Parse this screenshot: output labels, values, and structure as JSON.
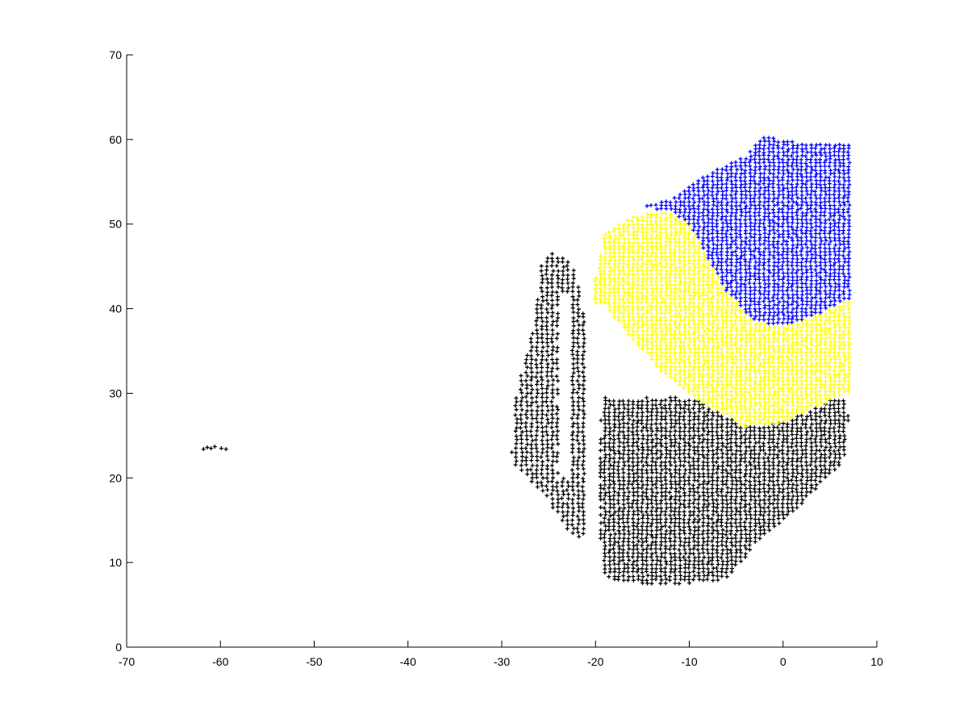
{
  "chart_data": {
    "type": "scatter",
    "title": "",
    "xlabel": "",
    "ylabel": "",
    "xlim": [
      -70,
      10
    ],
    "ylim": [
      0,
      70
    ],
    "xticks": [
      -70,
      -60,
      -50,
      -40,
      -30,
      -20,
      -10,
      0,
      10
    ],
    "yticks": [
      0,
      10,
      20,
      30,
      40,
      50,
      60,
      70
    ],
    "grid": false,
    "legend": "none",
    "marker": "+",
    "series": [
      {
        "color": "#000000",
        "regions": [
          {
            "x_range": [
              -62,
              -59
            ],
            "y_range": [
              23.2,
              23.9
            ],
            "step": [
              0.5,
              0.35
            ],
            "points": [
              [
                -61.8,
                23.4
              ],
              [
                -61.4,
                23.6
              ],
              [
                -61.0,
                23.5
              ],
              [
                -60.6,
                23.7
              ],
              [
                -59.9,
                23.5
              ],
              [
                -59.4,
                23.4
              ]
            ]
          },
          {
            "x_range": [
              -29,
              -21
            ],
            "y_range": [
              13,
              46.5
            ],
            "step": [
              0.55,
              0.5
            ],
            "bounds": [
              {
                "y": 13,
                "left": -22.5,
                "right": -21.2
              },
              {
                "y": 18,
                "left": -25.5,
                "right": -21.0
              },
              {
                "y": 22,
                "left": -29.0,
                "right": -21.0
              },
              {
                "y": 30,
                "left": -28.5,
                "right": -21.0
              },
              {
                "y": 38,
                "left": -26.5,
                "right": -21.0
              },
              {
                "y": 44,
                "left": -26.0,
                "right": -22.0
              },
              {
                "y": 46.5,
                "left": -25.5,
                "right": -23.5
              }
            ]
          },
          {
            "x_range": [
              -19.5,
              7
            ],
            "y_range": [
              7.5,
              40.5
            ],
            "step": [
              0.5,
              0.45
            ],
            "bounds": [
              {
                "y": 7.5,
                "left": -15,
                "right": -10
              },
              {
                "y": 8,
                "left": -19,
                "right": -6
              },
              {
                "y": 12,
                "left": -19.5,
                "right": -3
              },
              {
                "y": 17,
                "left": -19.5,
                "right": 2
              },
              {
                "y": 22,
                "left": -19.5,
                "right": 6.5
              },
              {
                "y": 26,
                "left": -19.5,
                "right": 7
              },
              {
                "y": 29.5,
                "left": -19.5,
                "right": 6.8
              }
            ],
            "upper_boundary": [
              [
                -19,
                40.5
              ],
              [
                -16,
                36
              ],
              [
                -12,
                31.5
              ],
              [
                -8,
                28.5
              ],
              [
                -4,
                26
              ],
              [
                0,
                26.5
              ],
              [
                3,
                28
              ],
              [
                6.5,
                30
              ]
            ]
          }
        ]
      },
      {
        "color": "#ffff00",
        "regions": [
          {
            "x_range": [
              -20,
              7
            ],
            "y_range": [
              26,
              51.5
            ],
            "step": [
              0.5,
              0.42
            ],
            "lower_boundary": [
              [
                -19,
                40.5
              ],
              [
                -16,
                36
              ],
              [
                -12,
                31.5
              ],
              [
                -8,
                28.5
              ],
              [
                -4,
                26
              ],
              [
                0,
                26.5
              ],
              [
                3,
                28
              ],
              [
                6.5,
                30
              ]
            ],
            "upper_boundary": [
              [
                -20,
                43.5
              ],
              [
                -19,
                49
              ],
              [
                -16,
                51
              ],
              [
                -12,
                51.5
              ],
              [
                -10,
                50
              ],
              [
                -8,
                46
              ],
              [
                -6,
                42
              ],
              [
                -3,
                38.5
              ],
              [
                0,
                38
              ],
              [
                3,
                39
              ],
              [
                6.5,
                41
              ]
            ]
          }
        ]
      },
      {
        "color": "#0000ff",
        "regions": [
          {
            "x_range": [
              -15,
              7
            ],
            "y_range": [
              37.5,
              61
            ],
            "step": [
              0.5,
              0.42
            ],
            "lower_boundary": [
              [
                -15,
                52
              ],
              [
                -12,
                51.5
              ],
              [
                -10,
                50
              ],
              [
                -8,
                46
              ],
              [
                -6,
                42
              ],
              [
                -3,
                38.5
              ],
              [
                0,
                38
              ],
              [
                3,
                39
              ],
              [
                6.5,
                41
              ]
            ],
            "upper_boundary": [
              [
                -15,
                52
              ],
              [
                -12,
                53
              ],
              [
                -8,
                56
              ],
              [
                -4,
                58
              ],
              [
                -2,
                60.5
              ],
              [
                0,
                60
              ],
              [
                3,
                59.5
              ],
              [
                6.5,
                59.5
              ]
            ]
          }
        ]
      }
    ]
  }
}
